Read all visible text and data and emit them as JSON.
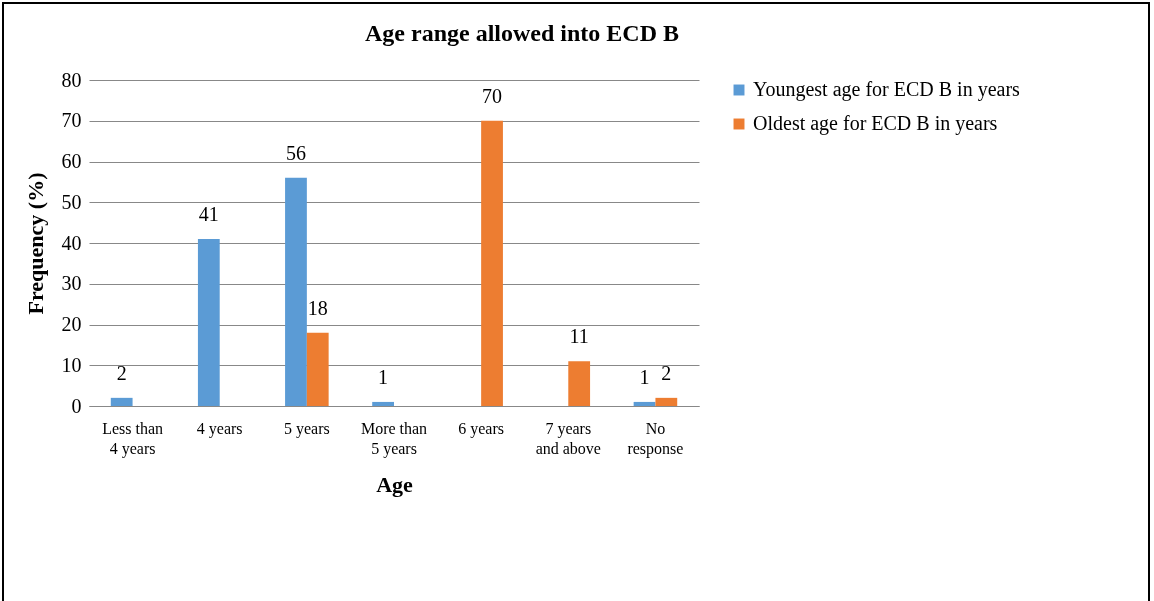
{
  "chart_data": {
    "type": "bar",
    "title": "Age range allowed into ECD B",
    "xlabel": "Age",
    "ylabel": "Frequency (%)",
    "categories": [
      "Less than 4 years",
      "4 years",
      "5 years",
      "More than 5 years",
      "6 years",
      "7 years and above",
      "No response"
    ],
    "series": [
      {
        "name": "Youngest age for ECD B in years",
        "color": "#5b9bd5",
        "values": [
          2,
          41,
          56,
          1,
          null,
          null,
          1
        ]
      },
      {
        "name": "Oldest age for ECD B in years",
        "color": "#ed7d31",
        "values": [
          null,
          null,
          18,
          null,
          70,
          11,
          2
        ]
      }
    ],
    "ylim": [
      0,
      80
    ],
    "yticks": [
      0,
      10,
      20,
      30,
      40,
      50,
      60,
      70,
      80
    ],
    "grid": "y",
    "legend": "right",
    "data_labels": true
  }
}
